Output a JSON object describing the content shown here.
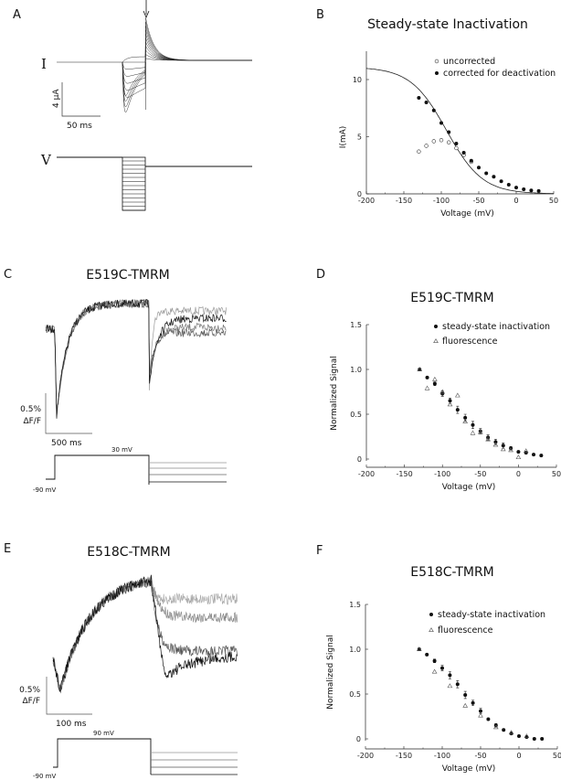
{
  "panels": {
    "A": {
      "label": "A",
      "current_label": "I",
      "voltage_label": "V",
      "scale_y": "4 μA",
      "scale_x": "50 ms"
    },
    "B": {
      "label": "B"
    },
    "C": {
      "label": "C",
      "title": "E519C-TMRM",
      "scale_y1": "0.5%",
      "scale_y2": "ΔF/F",
      "scale_x": "500 ms",
      "step_voltage": "30 mV",
      "hold_voltage": "-90 mV"
    },
    "D": {
      "label": "D"
    },
    "E": {
      "label": "E",
      "title": "E518C-TMRM",
      "scale_y1": "0.5%",
      "scale_y2": "ΔF/F",
      "scale_x": "100 ms",
      "step_voltage": "90 mV",
      "hold_voltage": "-90 mV"
    },
    "F": {
      "label": "F"
    }
  },
  "chart_data": [
    {
      "id": "B",
      "type": "scatter",
      "title": "Steady-state Inactivation",
      "xlabel": "Voltage (mV)",
      "ylabel": "I(mA)",
      "xlim": [
        -200,
        50
      ],
      "ylim": [
        0,
        12.5
      ],
      "xticks": [
        -200,
        -150,
        -100,
        -50,
        0,
        50
      ],
      "yticks": [
        0,
        5,
        10
      ],
      "legend_position": "top-right",
      "series": [
        {
          "name": "uncorrected",
          "marker": "open-circle",
          "x": [
            -130,
            -120,
            -110,
            -100,
            -90,
            -80,
            -70,
            -60
          ],
          "y": [
            3.7,
            4.2,
            4.6,
            4.7,
            4.5,
            4.0,
            3.4,
            2.8
          ]
        },
        {
          "name": "corrected for deactivation",
          "marker": "filled-circle",
          "x": [
            -130,
            -120,
            -110,
            -100,
            -90,
            -80,
            -70,
            -60,
            -50,
            -40,
            -30,
            -20,
            -10,
            0,
            10,
            20,
            30
          ],
          "y": [
            8.4,
            8.0,
            7.3,
            6.2,
            5.4,
            4.4,
            3.6,
            2.9,
            2.3,
            1.8,
            1.5,
            1.1,
            0.8,
            0.55,
            0.4,
            0.3,
            0.25
          ]
        }
      ],
      "fit": {
        "type": "boltzmann",
        "Imax": 11.1,
        "V_half": -93,
        "k": 24
      }
    },
    {
      "id": "D",
      "type": "scatter",
      "title": "E519C-TMRM",
      "xlabel": "Voltage (mV)",
      "ylabel": "Normalized Signal",
      "xlim": [
        -200,
        50
      ],
      "ylim": [
        -0.05,
        1.5
      ],
      "xticks": [
        -200,
        -150,
        -100,
        -50,
        0,
        50
      ],
      "yticks": [
        0,
        0.5,
        1.0,
        1.5
      ],
      "ytick_labels": [
        "0",
        "0.5",
        "1.0",
        "1.5"
      ],
      "legend_position": "top-right",
      "series": [
        {
          "name": "steady-state inactivation",
          "marker": "filled-circle",
          "x": [
            -130,
            -120,
            -110,
            -100,
            -90,
            -80,
            -70,
            -60,
            -50,
            -40,
            -30,
            -20,
            -10,
            0,
            10,
            20,
            30
          ],
          "y": [
            1.0,
            0.91,
            0.84,
            0.73,
            0.65,
            0.55,
            0.46,
            0.38,
            0.31,
            0.24,
            0.19,
            0.15,
            0.12,
            0.08,
            0.07,
            0.05,
            0.04
          ],
          "err": [
            0,
            0.01,
            0.02,
            0.03,
            0.03,
            0.04,
            0.04,
            0.04,
            0.03,
            0.03,
            0.03,
            0.03,
            0.02,
            0.01,
            0.01,
            0.01,
            0.01
          ]
        },
        {
          "name": "fluorescence",
          "marker": "open-triangle",
          "x": [
            -130,
            -120,
            -110,
            -100,
            -90,
            -80,
            -70,
            -60,
            -50,
            -40,
            -30,
            -20,
            -10,
            0,
            10
          ],
          "y": [
            1.0,
            0.79,
            0.89,
            0.75,
            0.61,
            0.71,
            0.42,
            0.29,
            0.3,
            0.22,
            0.16,
            0.11,
            0.1,
            0.02,
            0.09
          ]
        }
      ]
    },
    {
      "id": "F",
      "type": "scatter",
      "title": "E518C-TMRM",
      "xlabel": "Voltage (mV)",
      "ylabel": "Normalized Signal",
      "xlim": [
        -200,
        50
      ],
      "ylim": [
        -0.05,
        1.5
      ],
      "xticks": [
        -200,
        -150,
        -100,
        -50,
        0,
        50
      ],
      "yticks": [
        0,
        0.5,
        1.0,
        1.5
      ],
      "ytick_labels": [
        "0",
        "0.5",
        "1.0",
        "1.5"
      ],
      "legend_position": "top-right",
      "series": [
        {
          "name": "steady-state inactivation",
          "marker": "filled-circle",
          "x": [
            -130,
            -120,
            -110,
            -100,
            -90,
            -80,
            -70,
            -60,
            -50,
            -40,
            -30,
            -20,
            -10,
            0,
            10,
            20,
            30
          ],
          "y": [
            1.0,
            0.94,
            0.87,
            0.79,
            0.71,
            0.61,
            0.49,
            0.4,
            0.31,
            0.22,
            0.15,
            0.1,
            0.06,
            0.03,
            0.02,
            0.0,
            0.0
          ],
          "err": [
            0,
            0.01,
            0.02,
            0.03,
            0.04,
            0.04,
            0.04,
            0.03,
            0.03,
            0.01,
            0.02,
            0.01,
            0.01,
            0.01,
            0.01,
            0.01,
            0.01
          ]
        },
        {
          "name": "fluorescence",
          "marker": "open-triangle",
          "x": [
            -130,
            -110,
            -90,
            -70,
            -50,
            -30,
            -10,
            10
          ],
          "y": [
            1.0,
            0.75,
            0.59,
            0.37,
            0.26,
            0.13,
            0.07,
            0.03
          ]
        }
      ]
    }
  ]
}
